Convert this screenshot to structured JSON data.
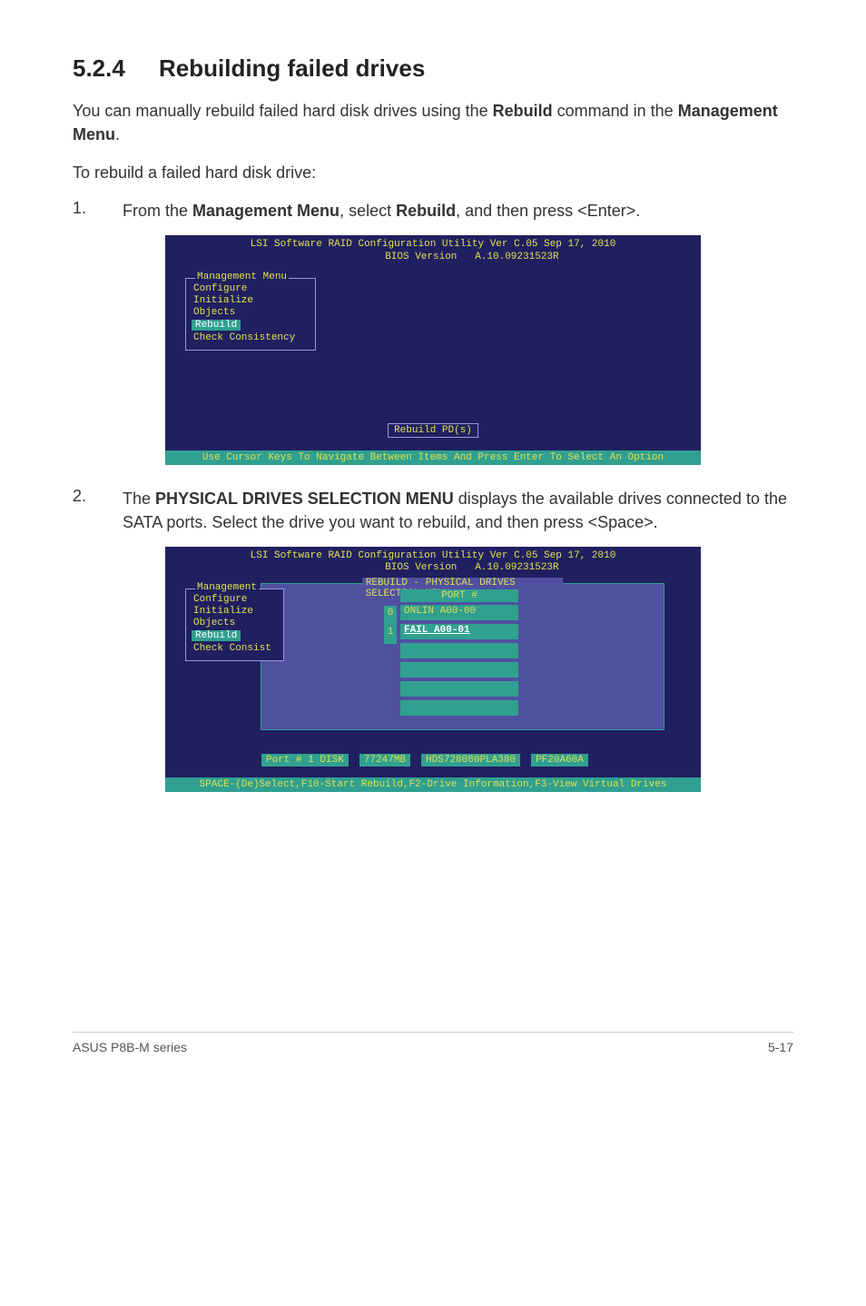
{
  "section": {
    "number": "5.2.4",
    "title": "Rebuilding failed drives"
  },
  "intro": {
    "p1_a": "You can manually rebuild failed hard disk drives using the ",
    "p1_b": "Rebuild",
    "p1_c": " command in the ",
    "p1_d": "Management Menu",
    "p1_e": ".",
    "p2": "To rebuild a failed hard disk drive:"
  },
  "steps": {
    "s1": {
      "num": "1.",
      "a": "From the ",
      "b": "Management Menu",
      "c": ", select ",
      "d": "Rebuild",
      "e": ", and then press <Enter>."
    },
    "s2": {
      "num": "2.",
      "a": "The ",
      "b": "PHYSICAL DRIVES SELECTION MENU",
      "c": " displays the available drives connected to the SATA ports. Select the drive you want to rebuild, and then press <Space>."
    }
  },
  "bios": {
    "header": "LSI Software RAID Configuration Utility Ver C.05 Sep 17, 2010\n             BIOS Version   A.10.09231523R",
    "management_title": "Management Menu",
    "management_title_short": "Management",
    "menu": {
      "configure": "Configure",
      "initialize": "Initialize",
      "objects": "Objects",
      "rebuild": "Rebuild",
      "check": "Check Consistency",
      "check_short": "Check Consist"
    },
    "rebuild_box": "Rebuild PD(s)",
    "footer1": "Use Cursor Keys To Navigate Between Items And Press Enter To Select An Option",
    "sel_title": "REBUILD - PHYSICAL DRIVES SELECTION MENU",
    "port_head": "PORT #",
    "port_idx0": "0",
    "port_idx1": "1",
    "port0": "ONLIN A00-00",
    "port1": "FAIL  A00-01",
    "disk": {
      "a": "Port # 1 DISK",
      "b": "77247MB",
      "c": "HDS728080PLA380",
      "d": "PF20A60A"
    },
    "footer2": "SPACE-(De)Select,F10-Start Rebuild,F2-Drive Information,F3-View Virtual Drives"
  },
  "footer": {
    "left": "ASUS P8B-M series",
    "right": "5-17"
  }
}
